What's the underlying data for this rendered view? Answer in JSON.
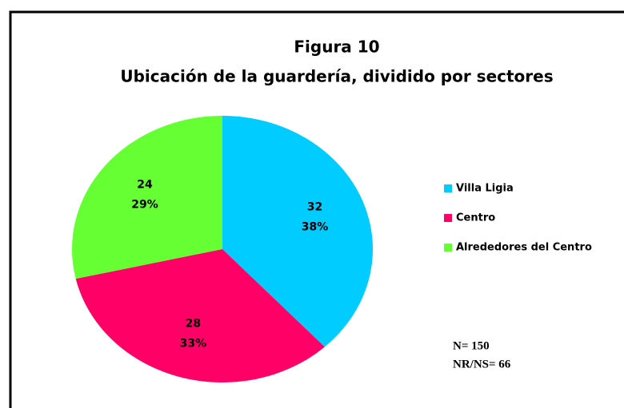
{
  "chart_data": {
    "type": "pie",
    "title": "Figura 10",
    "subtitle": "Ubicación de la guardería, dividido por sectores",
    "categories": [
      "Villa Ligia",
      "Centro",
      "Alrededores del Centro"
    ],
    "values": [
      32,
      28,
      24
    ],
    "percent_labels": [
      "38%",
      "33%",
      "29%"
    ],
    "colors": [
      "#00ccff",
      "#ff0066",
      "#66ff33"
    ],
    "legend": "right",
    "annotations": [
      "N= 150",
      "NR/NS= 66"
    ]
  }
}
